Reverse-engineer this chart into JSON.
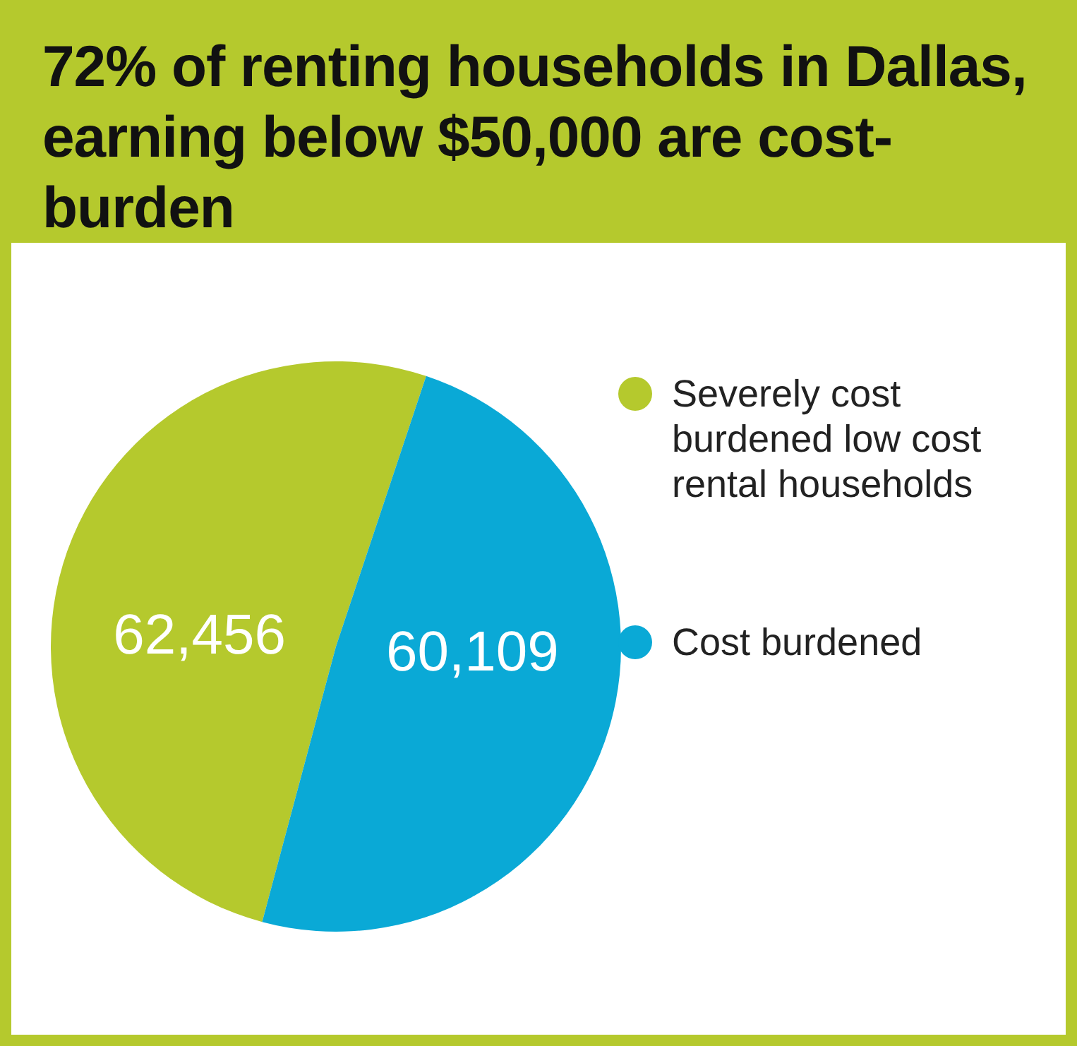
{
  "chart_data": {
    "type": "pie",
    "title": "72% of renting households in Dallas, earning below $50,000 are cost-burden",
    "categories": [
      "Severely cost burdened low cost rental households",
      "Cost burdened"
    ],
    "values": [
      62456,
      60109
    ],
    "colors": [
      "#b5c92d",
      "#0aa9d6"
    ],
    "value_labels": [
      "62,456",
      "60,109"
    ],
    "legend": "right"
  }
}
